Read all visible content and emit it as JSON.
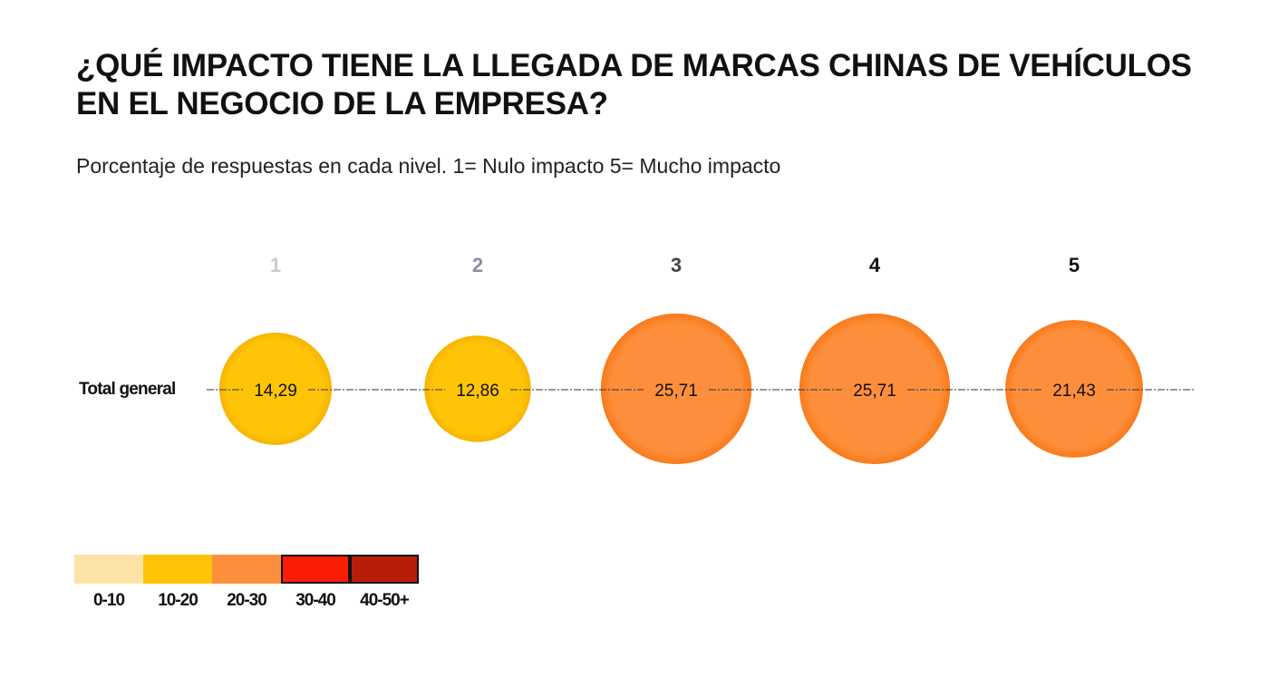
{
  "title_line1": "¿QUÉ IMPACTO TIENE LA LLEGADA DE MARCAS CHINAS DE VEHÍCULOS",
  "title_line2": "EN EL NEGOCIO DE LA EMPRESA?",
  "subtitle": "Porcentaje de respuestas en cada nivel.  1= Nulo impacto 5= Mucho impacto",
  "chart_data": {
    "type": "bubble",
    "row_label": "Total general",
    "categories": [
      "1",
      "2",
      "3",
      "4",
      "5"
    ],
    "category_colors": [
      "#c8ccd2",
      "#8a9099",
      "#444444",
      "#111111",
      "#111111"
    ],
    "values": [
      14.29,
      12.86,
      25.71,
      25.71,
      21.43
    ],
    "value_labels": [
      "14,29",
      "12,86",
      "25,71",
      "25,71",
      "21,43"
    ],
    "legend": [
      {
        "label": "0-10",
        "color": "#fde3a8"
      },
      {
        "label": "10-20",
        "color": "#fec408"
      },
      {
        "label": "20-30",
        "color": "#fd8f3c"
      },
      {
        "label": "30-40",
        "color": "#fb1e06"
      },
      {
        "label": "40-50+",
        "color": "#b81d0a"
      }
    ]
  }
}
